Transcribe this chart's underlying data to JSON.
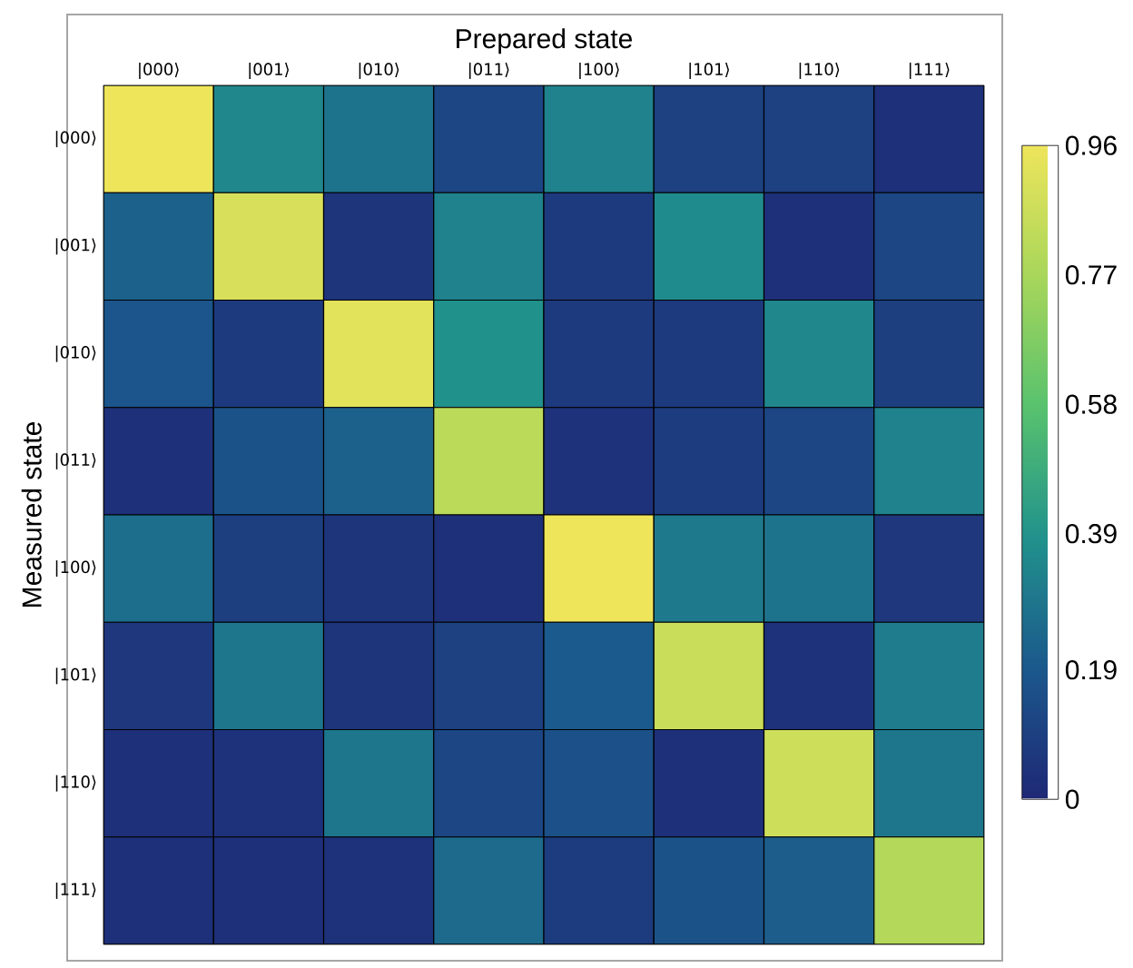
{
  "chart_data": {
    "type": "heatmap",
    "xlabel": "Prepared state",
    "ylabel": "Measured state",
    "categories": [
      "|000⟩",
      "|001⟩",
      "|010⟩",
      "|011⟩",
      "|100⟩",
      "|101⟩",
      "|110⟩",
      "|111⟩"
    ],
    "y_categories": [
      "|000⟩",
      "|001⟩",
      "|010⟩",
      "|011⟩",
      "|100⟩",
      "|101⟩",
      "|110⟩",
      "|111⟩"
    ],
    "cells": [
      [
        0.96,
        0.35,
        0.28,
        0.12,
        0.33,
        0.1,
        0.1,
        0.03
      ],
      [
        0.22,
        0.9,
        0.05,
        0.33,
        0.07,
        0.36,
        0.03,
        0.12
      ],
      [
        0.18,
        0.07,
        0.93,
        0.38,
        0.07,
        0.07,
        0.35,
        0.09
      ],
      [
        0.03,
        0.17,
        0.22,
        0.82,
        0.04,
        0.08,
        0.12,
        0.33
      ],
      [
        0.26,
        0.09,
        0.05,
        0.03,
        0.96,
        0.3,
        0.28,
        0.06
      ],
      [
        0.06,
        0.29,
        0.05,
        0.1,
        0.2,
        0.86,
        0.04,
        0.31
      ],
      [
        0.03,
        0.04,
        0.29,
        0.12,
        0.16,
        0.03,
        0.87,
        0.29
      ],
      [
        0.03,
        0.03,
        0.04,
        0.25,
        0.08,
        0.17,
        0.21,
        0.8
      ]
    ],
    "clim": [
      0,
      0.96
    ],
    "cticks": [
      0,
      0.19,
      0.39,
      0.58,
      0.77,
      0.96
    ]
  }
}
